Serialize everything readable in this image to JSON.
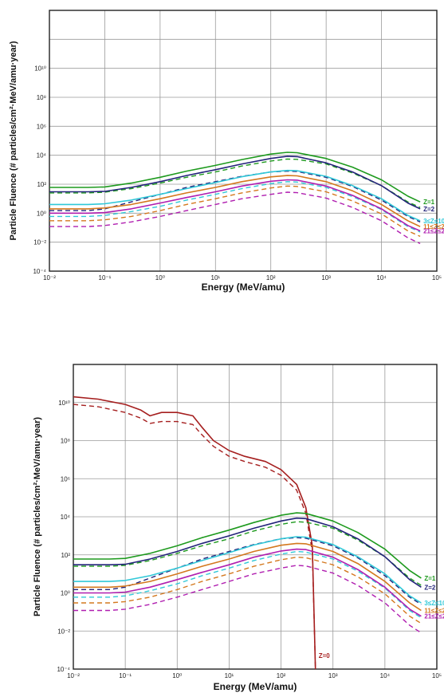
{
  "chart_data": [
    {
      "type": "line",
      "xlabel": "Energy (MeV/amu)",
      "ylabel": "Particle Fluence (# particles/cm²·MeV/amu·year)",
      "xscale": "log",
      "yscale": "log",
      "xlim": [
        0.01,
        100000
      ],
      "ylim": [
        0.0001,
        100000000000000.0
      ],
      "x_tick_labels": [
        "10⁻²",
        "10⁻¹",
        "10⁰",
        "10¹",
        "10²",
        "10³",
        "10⁴",
        "10⁵"
      ],
      "y_tick_labels": [
        "10⁻⁴",
        "10⁻²",
        "10⁰",
        "10²",
        "10⁴",
        "10⁶",
        "10⁸",
        "10¹⁰"
      ],
      "grid": true,
      "series": [
        {
          "name": "Z=1",
          "color": "#1e9a1e",
          "style": "solid",
          "x": [
            0.01,
            0.05,
            0.1,
            0.3,
            1,
            3,
            10,
            30,
            100,
            200,
            300,
            1000,
            3000,
            10000,
            30000,
            50000
          ],
          "y": [
            60,
            60,
            65,
            120,
            300,
            800,
            2000,
            5000,
            12000,
            16000,
            15000,
            6000,
            1500,
            200,
            15,
            6
          ]
        },
        {
          "name": "",
          "color": "#1e9a1e",
          "style": "dashed",
          "x": [
            0.01,
            0.05,
            0.1,
            0.3,
            1,
            3,
            10,
            30,
            100,
            200,
            300,
            1000,
            3000,
            10000,
            30000,
            50000
          ],
          "y": [
            25,
            25,
            28,
            50,
            120,
            300,
            700,
            1800,
            4000,
            5500,
            5200,
            2500,
            600,
            80,
            6,
            2.5
          ]
        },
        {
          "name": "Z=2",
          "color": "#23237a",
          "style": "solid",
          "x": [
            0.01,
            0.05,
            0.1,
            0.3,
            1,
            3,
            10,
            30,
            100,
            200,
            300,
            1000,
            3000,
            10000,
            30000,
            50000
          ],
          "y": [
            30,
            30,
            32,
            60,
            150,
            400,
            1000,
            2500,
            6000,
            8500,
            8000,
            3000,
            700,
            80,
            5,
            2
          ]
        },
        {
          "name": "",
          "color": "#23237a",
          "style": "dashed",
          "x": [
            0.01,
            0.05,
            0.1,
            0.3,
            1,
            3,
            10,
            30,
            100,
            200,
            300,
            1000,
            3000,
            10000,
            30000,
            50000
          ],
          "y": [
            1.5,
            1.5,
            2,
            6,
            20,
            60,
            150,
            350,
            700,
            800,
            750,
            300,
            70,
            8,
            0.6,
            0.25
          ]
        },
        {
          "name": "3≤Z≤10",
          "color": "#30c8d8",
          "style": "solid",
          "x": [
            0.01,
            0.05,
            0.1,
            0.3,
            1,
            3,
            10,
            30,
            100,
            200,
            300,
            1000,
            3000,
            10000,
            30000,
            50000
          ],
          "y": [
            4,
            4,
            4.5,
            8,
            20,
            50,
            130,
            330,
            700,
            900,
            850,
            350,
            80,
            10,
            0.7,
            0.3
          ]
        },
        {
          "name": "",
          "color": "#30c8d8",
          "style": "dashed",
          "x": [
            0.01,
            0.05,
            0.1,
            0.3,
            1,
            3,
            10,
            30,
            100,
            200,
            300,
            1000,
            3000,
            10000,
            30000,
            50000
          ],
          "y": [
            0.6,
            0.6,
            0.7,
            1.3,
            3,
            8,
            20,
            50,
            110,
            150,
            140,
            60,
            14,
            1.8,
            0.12,
            0.05
          ]
        },
        {
          "name": "11≤Z≤20",
          "color": "#d4781e",
          "style": "solid",
          "x": [
            0.01,
            0.05,
            0.1,
            0.3,
            1,
            3,
            10,
            30,
            100,
            200,
            300,
            1000,
            3000,
            10000,
            30000,
            50000
          ],
          "y": [
            2,
            2,
            2.3,
            4,
            10,
            25,
            60,
            150,
            320,
            400,
            380,
            150,
            35,
            4,
            0.3,
            0.12
          ]
        },
        {
          "name": "",
          "color": "#d4781e",
          "style": "dashed",
          "x": [
            0.01,
            0.05,
            0.1,
            0.3,
            1,
            3,
            10,
            30,
            100,
            200,
            300,
            1000,
            3000,
            10000,
            30000,
            50000
          ],
          "y": [
            0.3,
            0.3,
            0.35,
            0.6,
            1.5,
            4,
            10,
            25,
            55,
            75,
            70,
            30,
            7,
            0.9,
            0.06,
            0.025
          ]
        },
        {
          "name": "21≤Z≤28",
          "color": "#b01eb0",
          "style": "solid",
          "x": [
            0.01,
            0.05,
            0.1,
            0.3,
            1,
            3,
            10,
            30,
            100,
            200,
            300,
            1000,
            3000,
            10000,
            30000,
            50000
          ],
          "y": [
            1,
            1,
            1.1,
            2,
            5,
            12,
            30,
            75,
            160,
            200,
            190,
            75,
            17,
            2,
            0.14,
            0.06
          ]
        },
        {
          "name": "",
          "color": "#b01eb0",
          "style": "dashed",
          "x": [
            0.01,
            0.05,
            0.1,
            0.3,
            1,
            3,
            10,
            30,
            100,
            200,
            300,
            1000,
            3000,
            10000,
            30000,
            50000
          ],
          "y": [
            0.12,
            0.12,
            0.14,
            0.25,
            0.6,
            1.5,
            4,
            10,
            20,
            28,
            26,
            11,
            2.5,
            0.3,
            0.02,
            0.008
          ]
        }
      ]
    },
    {
      "type": "line",
      "xlabel": "Energy (MeV/amu)",
      "ylabel": "Particle Fluence (# particles/cm²·MeV/amu·year)",
      "xscale": "log",
      "yscale": "log",
      "xlim": [
        0.01,
        100000
      ],
      "ylim": [
        0.0001,
        1000000000000.0
      ],
      "x_tick_labels": [
        "10⁻²",
        "10⁻¹",
        "10⁰",
        "10¹",
        "10²",
        "10³",
        "10⁴",
        "10⁵"
      ],
      "y_tick_labels": [
        "10⁻⁴",
        "10⁻²",
        "10⁰",
        "10²",
        "10⁴",
        "10⁶",
        "10⁸",
        "10¹⁰"
      ],
      "grid": true,
      "series": [
        {
          "name": "Z=0",
          "color": "#a51e1e",
          "style": "solid",
          "x": [
            0.01,
            0.03,
            0.1,
            0.2,
            0.3,
            0.5,
            1,
            2,
            3,
            5,
            10,
            20,
            50,
            100,
            200,
            300,
            400,
            450,
            460
          ],
          "y": [
            20000000000.0,
            15000000000.0,
            8000000000.0,
            4000000000.0,
            2000000000.0,
            3000000000.0,
            3000000000.0,
            2000000000.0,
            500000000.0,
            100000000.0,
            30000000.0,
            15000000.0,
            8000000.0,
            3000000.0,
            500000.0,
            30000.0,
            300,
            0.001,
            0.0001
          ]
        },
        {
          "name": "",
          "color": "#a51e1e",
          "style": "dashed",
          "x": [
            0.01,
            0.03,
            0.1,
            0.2,
            0.3,
            0.5,
            1,
            2,
            3,
            5,
            10,
            20,
            50,
            100,
            200,
            300,
            400,
            450,
            460
          ],
          "y": [
            8000000000.0,
            6000000000.0,
            3000000000.0,
            1500000000.0,
            800000000.0,
            1000000000.0,
            1000000000.0,
            700000000.0,
            200000000.0,
            50000000.0,
            15000000.0,
            8000000.0,
            4000000.0,
            1500000.0,
            250000.0,
            15000.0,
            150,
            0.001,
            0.0001
          ]
        },
        {
          "name": "Z=1",
          "color": "#1e9a1e",
          "style": "solid",
          "x": [
            0.01,
            0.05,
            0.1,
            0.3,
            1,
            3,
            10,
            30,
            100,
            200,
            300,
            1000,
            3000,
            10000,
            30000,
            50000
          ],
          "y": [
            60,
            60,
            65,
            120,
            300,
            800,
            2000,
            5000,
            12000,
            16000,
            15000,
            6000,
            1500,
            200,
            15,
            6
          ]
        },
        {
          "name": "",
          "color": "#1e9a1e",
          "style": "dashed",
          "x": [
            0.01,
            0.05,
            0.1,
            0.3,
            1,
            3,
            10,
            30,
            100,
            200,
            300,
            1000,
            3000,
            10000,
            30000,
            50000
          ],
          "y": [
            25,
            25,
            28,
            50,
            120,
            300,
            700,
            1800,
            4000,
            5500,
            5200,
            2500,
            600,
            80,
            6,
            2.5
          ]
        },
        {
          "name": "Z=2",
          "color": "#23237a",
          "style": "solid",
          "x": [
            0.01,
            0.05,
            0.1,
            0.3,
            1,
            3,
            10,
            30,
            100,
            200,
            300,
            1000,
            3000,
            10000,
            30000,
            50000
          ],
          "y": [
            30,
            30,
            32,
            60,
            150,
            400,
            1000,
            2500,
            6000,
            8500,
            8000,
            3000,
            700,
            80,
            5,
            2
          ]
        },
        {
          "name": "",
          "color": "#23237a",
          "style": "dashed",
          "x": [
            0.01,
            0.05,
            0.1,
            0.3,
            1,
            3,
            10,
            30,
            100,
            200,
            300,
            1000,
            3000,
            10000,
            30000,
            50000
          ],
          "y": [
            1.5,
            1.5,
            2,
            6,
            20,
            60,
            150,
            350,
            700,
            800,
            750,
            300,
            70,
            8,
            0.6,
            0.25
          ]
        },
        {
          "name": "3≤Z≤10",
          "color": "#30c8d8",
          "style": "solid",
          "x": [
            0.01,
            0.05,
            0.1,
            0.3,
            1,
            3,
            10,
            30,
            100,
            200,
            300,
            1000,
            3000,
            10000,
            30000,
            50000
          ],
          "y": [
            4,
            4,
            4.5,
            8,
            20,
            50,
            130,
            330,
            700,
            900,
            850,
            350,
            80,
            10,
            0.7,
            0.3
          ]
        },
        {
          "name": "",
          "color": "#30c8d8",
          "style": "dashed",
          "x": [
            0.01,
            0.05,
            0.1,
            0.3,
            1,
            3,
            10,
            30,
            100,
            200,
            300,
            1000,
            3000,
            10000,
            30000,
            50000
          ],
          "y": [
            0.6,
            0.6,
            0.7,
            1.3,
            3,
            8,
            20,
            50,
            110,
            150,
            140,
            60,
            14,
            1.8,
            0.12,
            0.05
          ]
        },
        {
          "name": "11≤Z≤20",
          "color": "#d4781e",
          "style": "solid",
          "x": [
            0.01,
            0.05,
            0.1,
            0.3,
            1,
            3,
            10,
            30,
            100,
            200,
            300,
            1000,
            3000,
            10000,
            30000,
            50000
          ],
          "y": [
            2,
            2,
            2.3,
            4,
            10,
            25,
            60,
            150,
            320,
            400,
            380,
            150,
            35,
            4,
            0.3,
            0.12
          ]
        },
        {
          "name": "",
          "color": "#d4781e",
          "style": "dashed",
          "x": [
            0.01,
            0.05,
            0.1,
            0.3,
            1,
            3,
            10,
            30,
            100,
            200,
            300,
            1000,
            3000,
            10000,
            30000,
            50000
          ],
          "y": [
            0.3,
            0.3,
            0.35,
            0.6,
            1.5,
            4,
            10,
            25,
            55,
            75,
            70,
            30,
            7,
            0.9,
            0.06,
            0.025
          ]
        },
        {
          "name": "21≤Z≤28",
          "color": "#b01eb0",
          "style": "solid",
          "x": [
            0.01,
            0.05,
            0.1,
            0.3,
            1,
            3,
            10,
            30,
            100,
            200,
            300,
            1000,
            3000,
            10000,
            30000,
            50000
          ],
          "y": [
            1,
            1,
            1.1,
            2,
            5,
            12,
            30,
            75,
            160,
            200,
            190,
            75,
            17,
            2,
            0.14,
            0.06
          ]
        },
        {
          "name": "",
          "color": "#b01eb0",
          "style": "dashed",
          "x": [
            0.01,
            0.05,
            0.1,
            0.3,
            1,
            3,
            10,
            30,
            100,
            200,
            300,
            1000,
            3000,
            10000,
            30000,
            50000
          ],
          "y": [
            0.12,
            0.12,
            0.14,
            0.25,
            0.6,
            1.5,
            4,
            10,
            20,
            28,
            26,
            11,
            2.5,
            0.3,
            0.02,
            0.008
          ]
        }
      ]
    }
  ]
}
